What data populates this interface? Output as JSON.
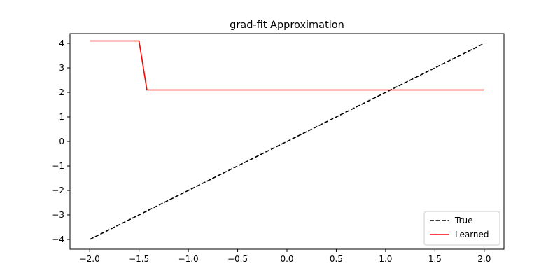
{
  "chart_data": {
    "type": "line",
    "title": "grad-fit Approximation",
    "xlabel": "",
    "ylabel": "",
    "xlim": [
      -2.2,
      2.2
    ],
    "ylim": [
      -4.4,
      4.4
    ],
    "xticks": [
      -2.0,
      -1.5,
      -1.0,
      -0.5,
      0.0,
      0.5,
      1.0,
      1.5,
      2.0
    ],
    "xtick_labels": [
      "−2.0",
      "−1.5",
      "−1.0",
      "−0.5",
      "0.0",
      "0.5",
      "1.0",
      "1.5",
      "2.0"
    ],
    "yticks": [
      -4,
      -3,
      -2,
      -1,
      0,
      1,
      2,
      3,
      4
    ],
    "ytick_labels": [
      "−4",
      "−3",
      "−2",
      "−1",
      "0",
      "1",
      "2",
      "3",
      "4"
    ],
    "grid": false,
    "legend_position": "bottom-right",
    "series": [
      {
        "name": "True",
        "color": "#000000",
        "style": "dashed",
        "x": [
          -2.0,
          2.0
        ],
        "y": [
          -4.0,
          4.0
        ]
      },
      {
        "name": "Learned",
        "color": "#ff0000",
        "style": "solid",
        "x": [
          -2.0,
          -1.5,
          -1.42,
          2.0
        ],
        "y": [
          4.1,
          4.1,
          2.1,
          2.1
        ]
      }
    ]
  }
}
